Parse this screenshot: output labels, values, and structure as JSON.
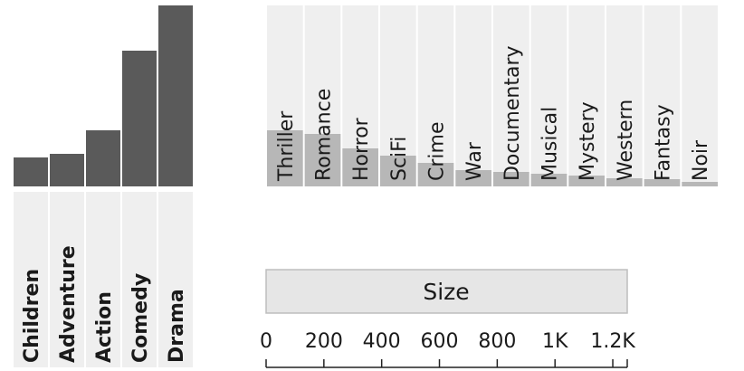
{
  "chart_data": [
    {
      "type": "bar",
      "categories": [
        "Children",
        "Adventure",
        "Action",
        "Comedy",
        "Drama"
      ],
      "values": [
        0.16,
        0.18,
        0.31,
        0.75,
        1.0
      ],
      "title": "",
      "xlabel": "",
      "ylabel": "",
      "colors": {
        "bar": "#5a5a5a",
        "label_bg": "#efefef"
      }
    },
    {
      "type": "bar",
      "categories": [
        "Thriller",
        "Romance",
        "Horror",
        "SciFi",
        "Crime",
        "War",
        "Documentary",
        "Musical",
        "Mystery",
        "Western",
        "Fantasy",
        "Noir"
      ],
      "values": [
        0.31,
        0.29,
        0.21,
        0.17,
        0.13,
        0.09,
        0.08,
        0.07,
        0.06,
        0.045,
        0.04,
        0.025
      ],
      "title": "",
      "xlabel": "",
      "ylabel": "",
      "colors": {
        "bar": "#b7b7b7",
        "background": "#efefef"
      }
    }
  ],
  "size_panel": {
    "title": "Size",
    "axis": {
      "min": 0,
      "max": 1250,
      "ticks": [
        {
          "value": 0,
          "label": "0"
        },
        {
          "value": 200,
          "label": "200"
        },
        {
          "value": 400,
          "label": "400"
        },
        {
          "value": 600,
          "label": "600"
        },
        {
          "value": 800,
          "label": "800"
        },
        {
          "value": 1000,
          "label": "1K"
        },
        {
          "value": 1200,
          "label": "1.2K"
        }
      ]
    },
    "colors": {
      "fill": "#e6e6e6",
      "border": "#bdbdbd"
    }
  }
}
